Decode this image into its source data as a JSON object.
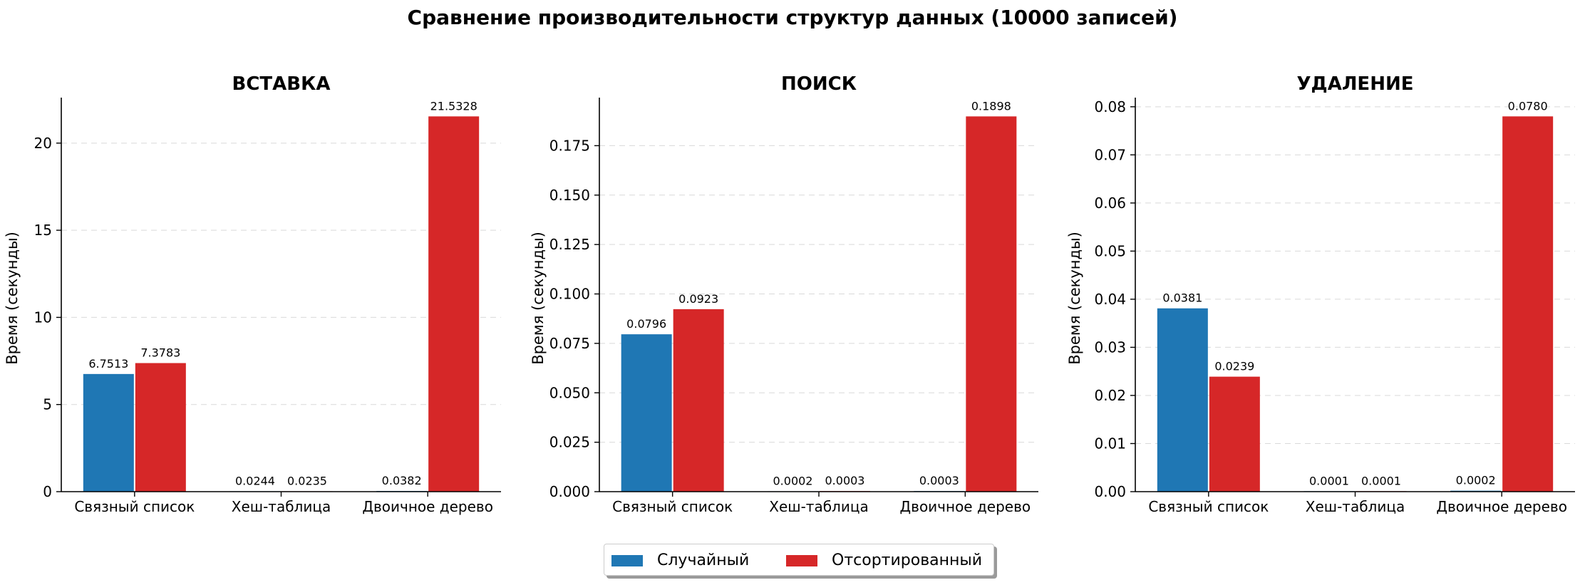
{
  "title": "Сравнение производительности структур данных (10000 записей)",
  "colors": {
    "random": "#1f77b4",
    "sorted": "#d62728"
  },
  "legend": {
    "items": [
      "Случайный",
      "Отсортированный"
    ]
  },
  "chart_data": [
    {
      "type": "bar",
      "title": "ВСТАВКА",
      "ylabel": "Время (секунды)",
      "xlabel": "",
      "categories": [
        "Связный список",
        "Хеш-таблица",
        "Двоичное дерево"
      ],
      "series": [
        {
          "name": "Случайный",
          "values": [
            6.7513,
            0.0244,
            0.0382
          ],
          "labels": [
            "6.7513",
            "0.0244",
            "0.0382"
          ]
        },
        {
          "name": "Отсортированный",
          "values": [
            7.3783,
            0.0235,
            21.5328
          ],
          "labels": [
            "7.3783",
            "0.0235",
            "21.5328"
          ]
        }
      ],
      "ylim": [
        0,
        22.61
      ],
      "yticks": [
        0,
        5,
        10,
        15,
        20
      ],
      "ytick_labels": [
        "0",
        "5",
        "10",
        "15",
        "20"
      ],
      "grid": true
    },
    {
      "type": "bar",
      "title": "ПОИСК",
      "ylabel": "Время (секунды)",
      "xlabel": "",
      "categories": [
        "Связный список",
        "Хеш-таблица",
        "Двоичное дерево"
      ],
      "series": [
        {
          "name": "Случайный",
          "values": [
            0.0796,
            0.0002,
            0.0003
          ],
          "labels": [
            "0.0796",
            "0.0002",
            "0.0003"
          ]
        },
        {
          "name": "Отсортированный",
          "values": [
            0.0923,
            0.0003,
            0.1898
          ],
          "labels": [
            "0.0923",
            "0.0003",
            "0.1898"
          ]
        }
      ],
      "ylim": [
        0,
        0.1993
      ],
      "yticks": [
        0,
        0.025,
        0.05,
        0.075,
        0.1,
        0.125,
        0.15,
        0.175
      ],
      "ytick_labels": [
        "0.000",
        "0.025",
        "0.050",
        "0.075",
        "0.100",
        "0.125",
        "0.150",
        "0.175"
      ],
      "grid": true
    },
    {
      "type": "bar",
      "title": "УДАЛЕНИЕ",
      "ylabel": "Время (секунды)",
      "xlabel": "",
      "categories": [
        "Связный список",
        "Хеш-таблица",
        "Двоичное дерево"
      ],
      "series": [
        {
          "name": "Случайный",
          "values": [
            0.0381,
            0.0001,
            0.0002
          ],
          "labels": [
            "0.0381",
            "0.0001",
            "0.0002"
          ]
        },
        {
          "name": "Отсортированный",
          "values": [
            0.0239,
            0.0001,
            0.078
          ],
          "labels": [
            "0.0239",
            "0.0001",
            "0.0780"
          ]
        }
      ],
      "ylim": [
        0,
        0.0819
      ],
      "yticks": [
        0,
        0.01,
        0.02,
        0.03,
        0.04,
        0.05,
        0.06,
        0.07,
        0.08
      ],
      "ytick_labels": [
        "0.00",
        "0.01",
        "0.02",
        "0.03",
        "0.04",
        "0.05",
        "0.06",
        "0.07",
        "0.08"
      ],
      "grid": true
    }
  ]
}
